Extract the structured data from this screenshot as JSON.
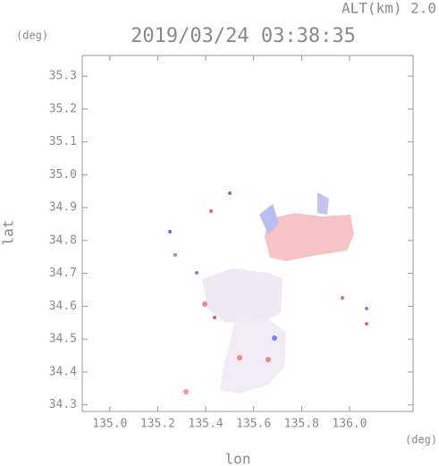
{
  "chart_data": {
    "type": "map",
    "title": "2019/03/24 03:38:35",
    "annotation": "ALT(km) 2.0",
    "y_unit": "(deg)",
    "x_unit": "(deg)",
    "xlabel": "lon",
    "ylabel": "lat",
    "xlim": [
      134.885,
      136.265
    ],
    "ylim": [
      34.28,
      35.363
    ],
    "xticks": [
      {
        "value": 135,
        "label": "135.0"
      },
      135.2,
      135.4,
      135.6,
      135.8,
      {
        "value": 136,
        "label": "136.0"
      }
    ],
    "yticks": [
      34.3,
      34.4,
      34.5,
      34.6,
      34.7,
      34.8,
      34.9,
      {
        "value": 35,
        "label": "35.0"
      },
      35.1,
      35.2,
      35.3
    ]
  }
}
